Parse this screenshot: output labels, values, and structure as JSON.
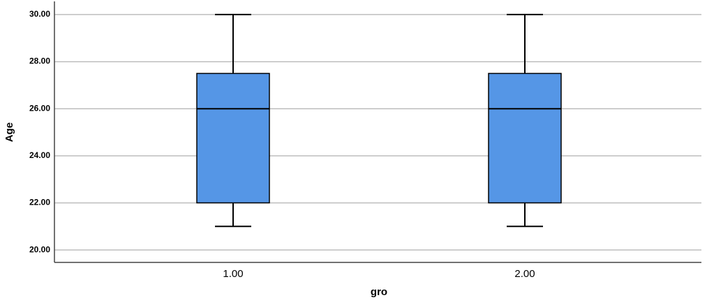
{
  "chart_data": {
    "type": "box",
    "x_label": "gro",
    "y_label": "Age",
    "categories": [
      "1.00",
      "2.00"
    ],
    "boxes": [
      {
        "whisker_low": 21,
        "q1": 22,
        "median": 26,
        "q3": 27.5,
        "whisker_high": 30
      },
      {
        "whisker_low": 21,
        "q1": 22,
        "median": 26,
        "q3": 27.5,
        "whisker_high": 30
      }
    ],
    "color": "#5596e6",
    "ylim": [
      19.47,
      30.56
    ],
    "yticks": [
      {
        "value": 20,
        "label": "20.00"
      },
      {
        "value": 22,
        "label": "22.00"
      },
      {
        "value": 24,
        "label": "24.00"
      },
      {
        "value": 26,
        "label": "26.00"
      },
      {
        "value": 28,
        "label": "28.00"
      },
      {
        "value": 30,
        "label": "30.00"
      }
    ],
    "grid": true
  }
}
